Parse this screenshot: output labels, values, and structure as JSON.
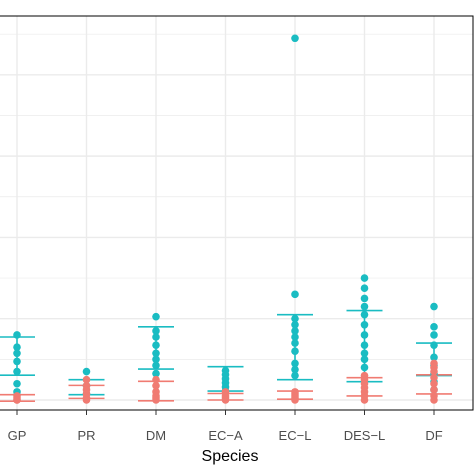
{
  "chart_data": {
    "type": "scatter",
    "xlabel": "Species",
    "ylabel": "",
    "categories": [
      "GP",
      "PR",
      "DM",
      "EC−A",
      "EC−L",
      "DES−L",
      "DF"
    ],
    "ylim": [
      0,
      9.3
    ],
    "grid": true,
    "legend": "none",
    "colors": {
      "teal": "#1ABCC2",
      "salmon": "#F07B72",
      "grid": "#EBEBEB",
      "border": "#000000"
    },
    "series": [
      {
        "color": "#1ABCC2",
        "points": {
          "GP": [
            1.6,
            1.3,
            1.15,
            0.95,
            0.7,
            0.4,
            0.2
          ],
          "PR": [
            0.7,
            0.35,
            0.15
          ],
          "DM": [
            2.05,
            1.7,
            1.55,
            1.35,
            1.15,
            1.0,
            0.85,
            0.65
          ],
          "EC−A": [
            0.72,
            0.62,
            0.52,
            0.42,
            0.32,
            0.22
          ],
          "EC−L": [
            8.9,
            2.6,
            2.0,
            1.85,
            1.7,
            1.55,
            1.4,
            1.2,
            0.9,
            0.75,
            0.6
          ],
          "DES−L": [
            3.0,
            2.75,
            2.5,
            2.3,
            2.1,
            1.85,
            1.6,
            1.35,
            1.15,
            1.0,
            0.8
          ],
          "DF": [
            2.3,
            1.8,
            1.6,
            1.35,
            1.05,
            0.85,
            0.65,
            0.45,
            0.25
          ]
        },
        "mean": {
          "GP": 1.08,
          "PR": 0.33,
          "DM": 1.28,
          "EC−A": 0.52,
          "EC−L": 1.3,
          "DES−L": 1.32,
          "DF": 1.0
        },
        "error_bars": {
          "GP": [
            0.61,
            1.55
          ],
          "PR": [
            0.13,
            0.5
          ],
          "DM": [
            0.76,
            1.8
          ],
          "EC−A": [
            0.22,
            0.82
          ],
          "EC−L": [
            0.5,
            2.1
          ],
          "DES−L": [
            0.45,
            2.2
          ],
          "DF": [
            0.6,
            1.4
          ]
        }
      },
      {
        "color": "#F07B72",
        "points": {
          "GP": [
            0.1,
            0.05,
            0.0,
            0.0
          ],
          "PR": [
            0.5,
            0.35,
            0.25,
            0.15,
            0.05,
            0.0
          ],
          "DM": [
            0.5,
            0.35,
            0.2,
            0.1,
            0.05,
            0.0
          ],
          "EC−A": [
            0.2,
            0.1,
            0.05,
            0.0
          ],
          "EC−L": [
            0.2,
            0.15,
            0.1,
            0.05,
            0.0
          ],
          "DES−L": [
            0.6,
            0.5,
            0.4,
            0.3,
            0.2,
            0.1,
            0.0
          ],
          "DF": [
            0.9,
            0.8,
            0.7,
            0.55,
            0.4,
            0.25,
            0.1,
            0.0
          ]
        },
        "mean": {
          "GP": 0.05,
          "PR": 0.2,
          "DM": 0.22,
          "EC−A": 0.08,
          "EC−L": 0.12,
          "DES−L": 0.32,
          "DF": 0.38
        },
        "error_bars": {
          "GP": [
            -0.03,
            0.13
          ],
          "PR": [
            0.04,
            0.36
          ],
          "DM": [
            -0.02,
            0.46
          ],
          "EC−A": [
            0.0,
            0.16
          ],
          "EC−L": [
            0.02,
            0.22
          ],
          "DES−L": [
            0.1,
            0.55
          ],
          "DF": [
            0.15,
            0.62
          ]
        }
      }
    ]
  }
}
